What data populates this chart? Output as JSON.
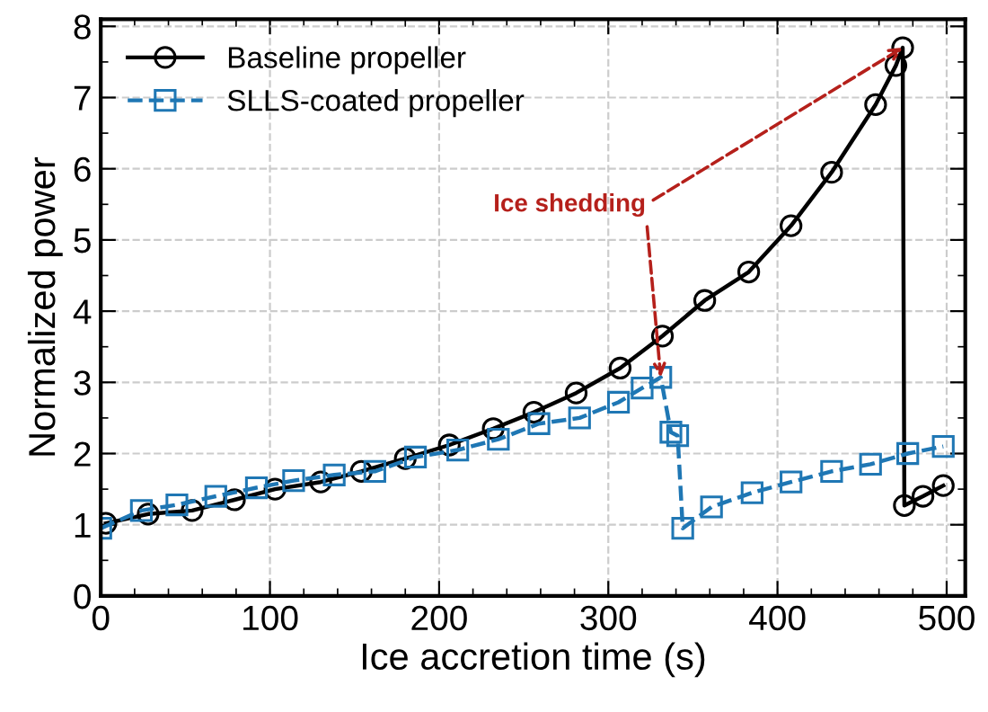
{
  "chart_data": {
    "type": "line",
    "xlabel": "Ice accretion time (s)",
    "ylabel": "Normalized power",
    "xlim": [
      0,
      511
    ],
    "ylim": [
      0,
      8.1
    ],
    "xticks": [
      0,
      100,
      200,
      300,
      400,
      500
    ],
    "yticks": [
      0,
      1,
      2,
      3,
      4,
      5,
      6,
      7,
      8
    ],
    "grid": true,
    "legend": "top left",
    "series": [
      {
        "name": "Baseline propeller",
        "color": "#000000",
        "marker": "circle",
        "line_style": "solid",
        "x": [
          3,
          28,
          54,
          79,
          103,
          130,
          154,
          180,
          206,
          232,
          256,
          281,
          307,
          332,
          357,
          383,
          408,
          432,
          458,
          470,
          474,
          475,
          486,
          498
        ],
        "values": [
          1.02,
          1.15,
          1.2,
          1.35,
          1.5,
          1.6,
          1.75,
          1.93,
          2.12,
          2.35,
          2.58,
          2.85,
          3.2,
          3.65,
          4.15,
          4.55,
          5.2,
          5.95,
          6.9,
          7.45,
          7.7,
          1.27,
          1.4,
          1.55
        ]
      },
      {
        "name": "SLLS-coated propeller",
        "color": "#1f77b4",
        "marker": "square",
        "line_style": "dashed",
        "x": [
          0,
          24,
          45,
          68,
          92,
          114,
          138,
          162,
          186,
          211,
          235,
          259,
          283,
          306,
          320,
          331,
          337,
          341,
          344,
          361,
          385,
          408,
          432,
          455,
          477,
          498
        ],
        "values": [
          0.95,
          1.2,
          1.28,
          1.4,
          1.52,
          1.62,
          1.7,
          1.75,
          1.95,
          2.05,
          2.2,
          2.42,
          2.5,
          2.72,
          2.92,
          3.07,
          2.3,
          2.25,
          0.95,
          1.25,
          1.45,
          1.6,
          1.75,
          1.85,
          2.0,
          2.1
        ]
      }
    ],
    "annotations": [
      {
        "text": "Ice shedding",
        "x": 331,
        "y": 3.07
      }
    ]
  }
}
